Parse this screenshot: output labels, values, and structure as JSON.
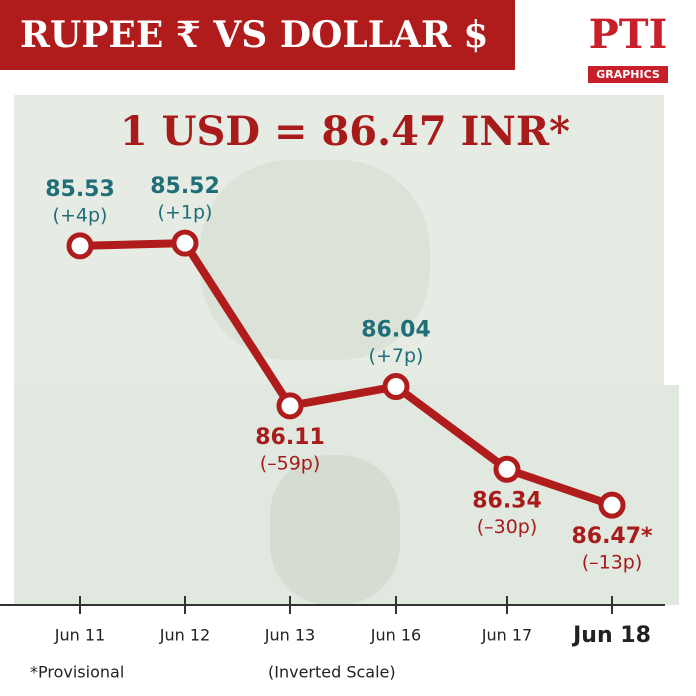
{
  "chart_data": {
    "type": "line",
    "title": "RUPEE ₹   VS   DOLLAR $",
    "logo": "PTI",
    "logo_subtitle": "GRAPHICS",
    "headline": "1 USD = 86.47 INR*",
    "categories": [
      "Jun 11",
      "Jun 12",
      "Jun 13",
      "Jun 16",
      "Jun 17",
      "Jun 18"
    ],
    "values": [
      85.53,
      85.52,
      86.11,
      86.04,
      86.34,
      86.47
    ],
    "value_labels": [
      "85.53",
      "85.52",
      "86.11",
      "86.04",
      "86.34",
      "86.47*"
    ],
    "changes": [
      "(+4p)",
      "(+1p)",
      "(–59p)",
      "(+7p)",
      "(–30p)",
      "(–13p)"
    ],
    "color": "#b01c1c",
    "up_color": "#1f6e78",
    "down_color": "#a81b1b",
    "ylim": [
      85.4,
      86.6
    ],
    "inverted_y": true,
    "footnote": "*Provisional",
    "scale_note": "(Inverted Scale)"
  }
}
